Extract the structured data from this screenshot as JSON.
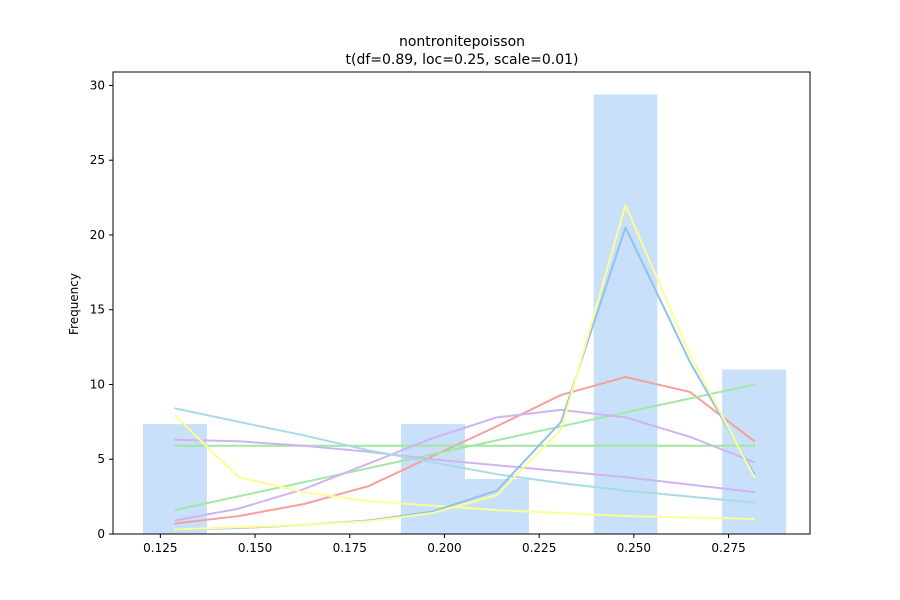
{
  "chart_data": {
    "type": "bar",
    "title": "nontronitepoisson",
    "subtitle": "t(df=0.89, loc=0.25, scale=0.01)",
    "xlabel": "",
    "ylabel": "Frequency",
    "xlim": [
      0.1125,
      0.2965
    ],
    "ylim": [
      0,
      30.9
    ],
    "x_ticks": [
      0.125,
      0.15,
      0.175,
      0.2,
      0.225,
      0.25,
      0.275
    ],
    "x_tick_labels": [
      "0.125",
      "0.150",
      "0.175",
      "0.200",
      "0.225",
      "0.250",
      "0.275"
    ],
    "y_ticks": [
      0,
      5,
      10,
      15,
      20,
      25,
      30
    ],
    "y_tick_labels": [
      "0",
      "5",
      "10",
      "15",
      "20",
      "25",
      "30"
    ],
    "grid": false,
    "bars": {
      "color": "#c8e0fa",
      "bins": [
        {
          "x0": 0.1204,
          "x1": 0.1373,
          "value": 7.35
        },
        {
          "x0": 0.1885,
          "x1": 0.2054,
          "value": 7.35
        },
        {
          "x0": 0.2054,
          "x1": 0.2223,
          "value": 3.68
        },
        {
          "x0": 0.2394,
          "x1": 0.2562,
          "value": 29.4
        },
        {
          "x0": 0.2733,
          "x1": 0.2902,
          "value": 11.0
        }
      ]
    },
    "series": [
      {
        "color": "#f4a09c",
        "x": [
          0.1289,
          0.1457,
          0.1628,
          0.1799,
          0.1968,
          0.2138,
          0.2308,
          0.2478,
          0.2648,
          0.2818
        ],
        "values": [
          0.7,
          1.2,
          2.0,
          3.2,
          5.2,
          7.2,
          9.3,
          10.5,
          9.5,
          6.2
        ]
      },
      {
        "color": "#a0e8a4",
        "x": [
          0.1289,
          0.2818
        ],
        "values": [
          1.6,
          10.0
        ]
      },
      {
        "color": "#9fe89f",
        "x": [
          0.1289,
          0.2818
        ],
        "values": [
          5.9,
          5.9
        ]
      },
      {
        "color": "#d0b4f0",
        "x": [
          0.1289,
          0.1457,
          0.1628,
          0.1799,
          0.1968,
          0.2138,
          0.2308,
          0.2478,
          0.2648,
          0.2818
        ],
        "values": [
          0.9,
          1.7,
          3.0,
          4.7,
          6.4,
          7.8,
          8.3,
          7.8,
          6.5,
          4.8
        ]
      },
      {
        "color": "#d0b4f0",
        "x": [
          0.1289,
          0.1457,
          0.1628,
          0.1799,
          0.1968,
          0.2138,
          0.2308,
          0.2478,
          0.2648,
          0.2818
        ],
        "values": [
          6.3,
          6.2,
          5.9,
          5.5,
          5.0,
          4.6,
          4.2,
          3.8,
          3.3,
          2.8
        ]
      },
      {
        "color": "#a8dce4",
        "x": [
          0.1289,
          0.1457,
          0.1628,
          0.1799,
          0.1968,
          0.2138,
          0.2308,
          0.2478,
          0.2648,
          0.2818
        ],
        "values": [
          8.4,
          7.5,
          6.6,
          5.6,
          4.8,
          4.0,
          3.4,
          2.9,
          2.5,
          2.1
        ]
      },
      {
        "color": "#fdfd96",
        "x": [
          0.1289,
          0.1457,
          0.1628,
          0.1799,
          0.1968,
          0.2138,
          0.2308,
          0.2478,
          0.2648,
          0.2818
        ],
        "values": [
          7.9,
          3.8,
          2.8,
          2.2,
          1.9,
          1.6,
          1.4,
          1.2,
          1.1,
          1.0
        ]
      },
      {
        "color": "#90c2f0",
        "x": [
          0.1289,
          0.1457,
          0.1628,
          0.1799,
          0.1968,
          0.2138,
          0.2308,
          0.2478,
          0.2648,
          0.2818
        ],
        "values": [
          0.3,
          0.4,
          0.6,
          0.9,
          1.5,
          2.9,
          7.5,
          20.5,
          11.5,
          4.0
        ]
      },
      {
        "color": "#fdfd96",
        "x": [
          0.1289,
          0.1457,
          0.1628,
          0.1799,
          0.1968,
          0.2138,
          0.2308,
          0.2478,
          0.2648,
          0.2818
        ],
        "values": [
          0.3,
          0.45,
          0.6,
          0.85,
          1.4,
          2.6,
          7.0,
          22.0,
          12.0,
          3.8
        ]
      }
    ]
  }
}
